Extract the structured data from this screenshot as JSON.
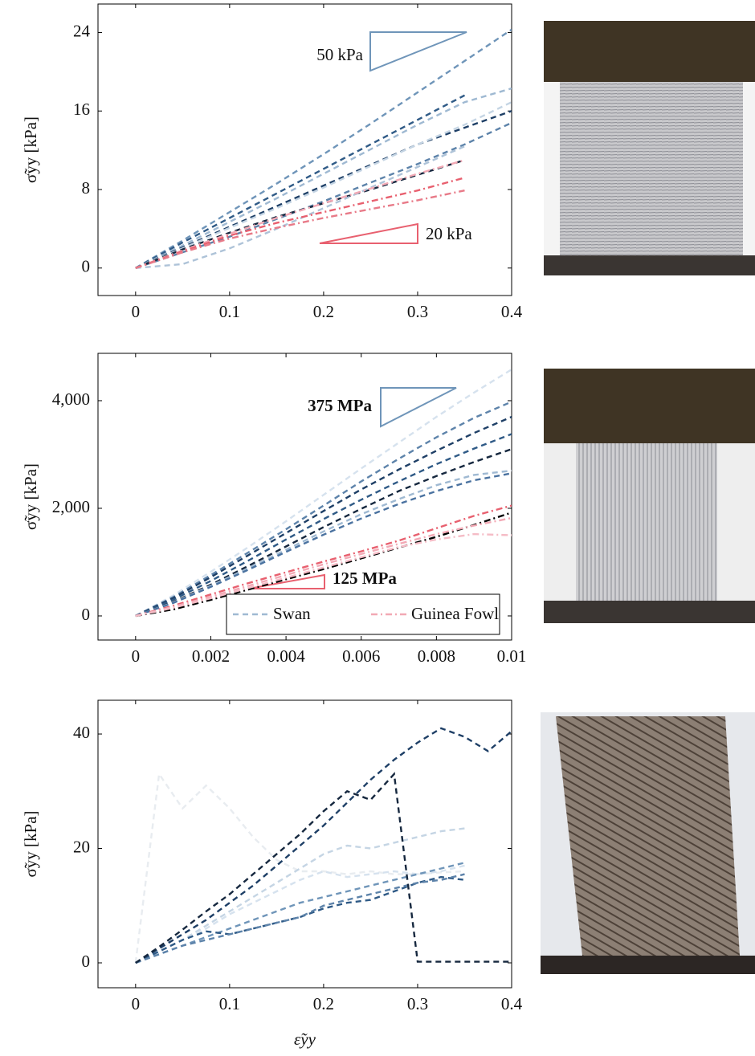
{
  "chart_data": [
    {
      "type": "line",
      "ylabel": "σ̃yy [kPa]",
      "xlim": [
        -0.04,
        0.4
      ],
      "ylim": [
        -2.8,
        26.9
      ],
      "xticks": [
        0,
        0.1,
        0.2,
        0.3,
        0.4
      ],
      "yticks": [
        0,
        8,
        16,
        24
      ],
      "annotations": [
        "50 kPa",
        "20 kPa"
      ],
      "x": [
        0,
        0.05,
        0.1,
        0.15,
        0.2,
        0.25,
        0.3,
        0.35,
        0.4
      ],
      "series": [
        {
          "color": "#6f95b9",
          "style": "dash",
          "values": [
            0,
            2.8,
            5.7,
            8.6,
            11.6,
            14.7,
            17.9,
            21.1,
            24.3
          ]
        },
        {
          "color": "#2f5a86",
          "style": "dash",
          "values": [
            0,
            2.6,
            5.1,
            7.6,
            10.1,
            12.6,
            15.1,
            17.6,
            null
          ]
        },
        {
          "color": "#9fb9d2",
          "style": "dash",
          "values": [
            0,
            2.3,
            4.7,
            7.1,
            9.6,
            12.1,
            14.6,
            16.9,
            18.3
          ]
        },
        {
          "color": "#1e3f66",
          "style": "dash",
          "values": [
            0,
            2.1,
            4.2,
            6.3,
            8.4,
            10.5,
            12.6,
            14.3,
            16.0
          ]
        },
        {
          "color": "#c5d5e4",
          "style": "dash",
          "values": [
            0,
            2.0,
            4.1,
            6.1,
            8.2,
            10.4,
            12.6,
            14.6,
            16.9
          ]
        },
        {
          "color": "#5d83aa",
          "style": "dash",
          "values": [
            0,
            1.6,
            3.2,
            5.0,
            6.8,
            8.7,
            10.6,
            12.6,
            14.8
          ]
        },
        {
          "color": "#16283f",
          "style": "dash",
          "values": [
            0,
            1.9,
            3.6,
            5.2,
            6.6,
            8.0,
            9.5,
            11.0,
            null
          ]
        },
        {
          "color": "#aec3d8",
          "style": "dash",
          "values": [
            0,
            0.4,
            2.0,
            4.0,
            6.1,
            8.2,
            10.3,
            12.4,
            null
          ]
        },
        {
          "color": "#f2a9b5",
          "style": "dashdot",
          "values": [
            0,
            1.8,
            3.5,
            5.1,
            6.6,
            8.1,
            9.6,
            11.0,
            null
          ]
        },
        {
          "color": "#e8606f",
          "style": "dashdot",
          "values": [
            0,
            1.7,
            3.3,
            4.6,
            5.7,
            6.8,
            7.9,
            9.2,
            null
          ]
        },
        {
          "color": "#e87a88",
          "style": "dashdot",
          "values": [
            0,
            1.6,
            3.0,
            4.1,
            5.1,
            6.0,
            6.9,
            7.9,
            null
          ]
        }
      ]
    },
    {
      "type": "line",
      "ylabel": "σ̃yy [kPa]",
      "xlim": [
        -0.001,
        0.01
      ],
      "ylim": [
        -448,
        4880
      ],
      "xticks": [
        0,
        0.002,
        0.004,
        0.006,
        0.008,
        0.01
      ],
      "yticks": [
        0,
        {
          "value": 2000,
          "label": "2,000"
        },
        {
          "value": 4000,
          "label": "4,000"
        }
      ],
      "annotations": [
        "375 MPa",
        "125 MPa"
      ],
      "legend": [
        {
          "name": "Swan",
          "color": "#9fb9d2",
          "style": "dash"
        },
        {
          "name": "Guinea Fowl",
          "color": "#f2a9b5",
          "style": "dashdot"
        }
      ],
      "x": [
        0,
        0.001,
        0.002,
        0.003,
        0.004,
        0.005,
        0.006,
        0.007,
        0.008,
        0.009,
        0.01
      ],
      "series": [
        {
          "color": "#d6e2ee",
          "style": "dash",
          "values": [
            0,
            380,
            820,
            1280,
            1760,
            2250,
            2740,
            3220,
            3700,
            4150,
            4580
          ]
        },
        {
          "color": "#5d83aa",
          "style": "dash",
          "values": [
            0,
            350,
            760,
            1180,
            1610,
            2050,
            2500,
            2920,
            3320,
            3680,
            3980
          ]
        },
        {
          "color": "#1e3f66",
          "style": "dash",
          "values": [
            0,
            330,
            720,
            1130,
            1540,
            1950,
            2350,
            2720,
            3070,
            3400,
            3700
          ]
        },
        {
          "color": "#2f5a86",
          "style": "dash",
          "values": [
            0,
            300,
            650,
            1030,
            1420,
            1800,
            2160,
            2500,
            2820,
            3110,
            3380
          ]
        },
        {
          "color": "#16283f",
          "style": "dash",
          "values": [
            0,
            260,
            580,
            930,
            1290,
            1650,
            1990,
            2320,
            2600,
            2860,
            3100
          ]
        },
        {
          "color": "#9fb9d2",
          "style": "dash",
          "values": [
            0,
            250,
            560,
            890,
            1230,
            1570,
            1890,
            2170,
            2430,
            2620,
            2700
          ]
        },
        {
          "color": "#4a72a0",
          "style": "dash",
          "values": [
            0,
            240,
            540,
            860,
            1190,
            1510,
            1810,
            2080,
            2320,
            2520,
            2650
          ]
        },
        {
          "color": "#e8606f",
          "style": "dashdot",
          "values": [
            0,
            190,
            400,
            610,
            810,
            1010,
            1200,
            1400,
            1630,
            1860,
            2050
          ]
        },
        {
          "color": "#000000",
          "style": "dashdot",
          "values": [
            0,
            120,
            300,
            490,
            680,
            870,
            1070,
            1270,
            1470,
            1690,
            1920
          ]
        },
        {
          "color": "#f2a9b5",
          "style": "dashdot",
          "values": [
            0,
            170,
            360,
            560,
            760,
            960,
            1150,
            1340,
            1520,
            1680,
            1820
          ]
        },
        {
          "color": "#f5bcc6",
          "style": "dashdot",
          "values": [
            0,
            150,
            330,
            520,
            710,
            900,
            1090,
            1280,
            1420,
            1520,
            1500
          ]
        }
      ]
    },
    {
      "type": "line",
      "ylabel": "σ̃yy [kPa]",
      "xlabel": "ε̃yy",
      "xlim": [
        -0.04,
        0.4
      ],
      "ylim": [
        -4.35,
        45.9
      ],
      "xticks": [
        0,
        0.1,
        0.2,
        0.3,
        0.4
      ],
      "yticks": [
        0,
        20,
        40
      ],
      "x": [
        0,
        0.025,
        0.05,
        0.075,
        0.1,
        0.125,
        0.15,
        0.175,
        0.2,
        0.225,
        0.25,
        0.275,
        0.3,
        0.325,
        0.35,
        0.375,
        0.4
      ],
      "series": [
        {
          "color": "#e8ecf0",
          "style": "dash",
          "values": [
            0,
            33,
            27,
            31,
            27,
            22,
            18,
            16,
            16,
            15.5,
            16,
            15.5,
            15.5,
            15.8,
            16,
            null,
            null
          ]
        },
        {
          "color": "#c5d5e4",
          "style": "dash",
          "values": [
            0,
            2,
            4,
            6.5,
            9,
            11.5,
            14,
            16.5,
            19,
            20.5,
            20,
            21,
            22,
            23,
            23.5,
            null,
            null
          ]
        },
        {
          "color": "#d6e2ee",
          "style": "dash",
          "values": [
            0,
            2,
            4,
            6,
            8.5,
            10.5,
            12.5,
            14.5,
            16,
            15,
            15.5,
            16,
            15.5,
            16,
            17,
            null,
            null
          ]
        },
        {
          "color": "#6f95b9",
          "style": "dash",
          "values": [
            0,
            1.5,
            3,
            4.5,
            6,
            7.5,
            9,
            10.5,
            11.5,
            12.5,
            13.5,
            14.5,
            15.5,
            16.5,
            17.5,
            null,
            null
          ]
        },
        {
          "color": "#2f5a86",
          "style": "dash",
          "values": [
            0,
            2,
            4,
            5.5,
            5,
            6,
            7,
            8,
            9.5,
            10.5,
            11,
            12.5,
            14,
            15,
            14.5,
            null,
            null
          ]
        },
        {
          "color": "#5d83aa",
          "style": "dash",
          "values": [
            0,
            1.5,
            3,
            4,
            5,
            6,
            7,
            8,
            10,
            11,
            12,
            13,
            14,
            14.5,
            15.5,
            null,
            null
          ]
        },
        {
          "color": "#1e3f66",
          "style": "dash",
          "values": [
            0,
            2.5,
            5,
            7.5,
            10.5,
            13.5,
            17,
            20.5,
            24,
            28,
            32,
            35.5,
            38.5,
            41,
            39.5,
            37,
            40.5
          ]
        },
        {
          "color": "#16283f",
          "style": "dash",
          "values": [
            0,
            2.8,
            5.8,
            9,
            12,
            15.5,
            19,
            22.5,
            26.5,
            30,
            28.5,
            33,
            0.2,
            0.2,
            0.2,
            0.2,
            0.2
          ]
        }
      ]
    }
  ]
}
